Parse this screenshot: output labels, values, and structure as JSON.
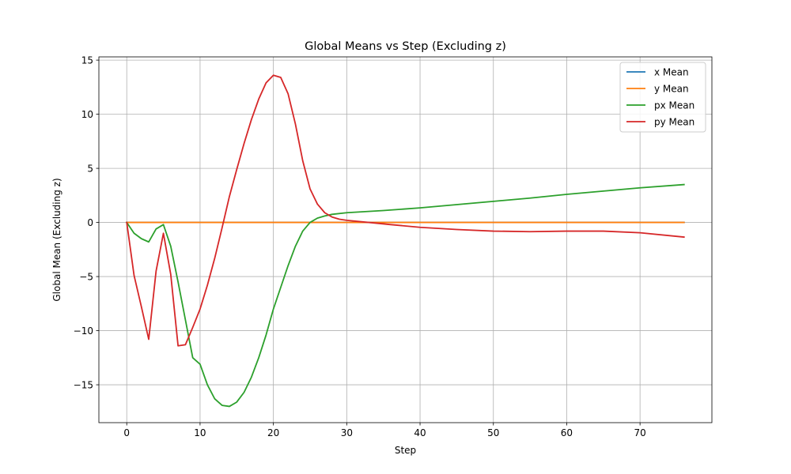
{
  "chart_data": {
    "type": "line",
    "title": "Global Means vs Step (Excluding z)",
    "xlabel": "Step",
    "ylabel": "Global Mean (Excluding z)",
    "xlim": [
      -3.8,
      79.8
    ],
    "ylim": [
      -18.5,
      15.3
    ],
    "xticks": [
      0,
      10,
      20,
      30,
      40,
      50,
      60,
      70
    ],
    "yticks": [
      -15,
      -10,
      -5,
      0,
      5,
      10,
      15
    ],
    "grid": true,
    "legend_position": "top-right",
    "series": [
      {
        "name": "x Mean",
        "color": "#1f77b4",
        "x": [
          0,
          76
        ],
        "y": [
          0,
          0
        ]
      },
      {
        "name": "y Mean",
        "color": "#ff7f0e",
        "x": [
          0,
          76
        ],
        "y": [
          0,
          0
        ]
      },
      {
        "name": "px Mean",
        "color": "#2ca02c",
        "x": [
          0,
          1,
          2,
          3,
          4,
          5,
          6,
          7,
          8,
          9,
          10,
          11,
          12,
          13,
          14,
          15,
          16,
          17,
          18,
          19,
          20,
          21,
          22,
          23,
          24,
          25,
          26,
          27,
          28,
          30,
          35,
          40,
          45,
          50,
          55,
          60,
          65,
          70,
          76
        ],
        "y": [
          0,
          -1.0,
          -1.5,
          -1.8,
          -0.6,
          -0.2,
          -2.2,
          -5.5,
          -9.0,
          -12.5,
          -13.1,
          -15.0,
          -16.3,
          -16.9,
          -17.0,
          -16.6,
          -15.7,
          -14.3,
          -12.5,
          -10.4,
          -8.0,
          -6.0,
          -4.0,
          -2.2,
          -0.8,
          0.0,
          0.4,
          0.6,
          0.75,
          0.9,
          1.1,
          1.35,
          1.65,
          1.95,
          2.25,
          2.6,
          2.9,
          3.2,
          3.5
        ]
      },
      {
        "name": "py Mean",
        "color": "#d62728",
        "x": [
          0,
          1,
          2,
          3,
          4,
          5,
          6,
          7,
          8,
          9,
          10,
          11,
          12,
          13,
          14,
          15,
          16,
          17,
          18,
          19,
          20,
          21,
          22,
          23,
          24,
          25,
          26,
          27,
          28,
          29,
          30,
          33,
          36,
          40,
          45,
          50,
          55,
          60,
          65,
          70,
          76
        ],
        "y": [
          0,
          -4.9,
          -7.8,
          -10.8,
          -4.5,
          -1.0,
          -4.8,
          -11.4,
          -11.3,
          -9.7,
          -8.0,
          -5.8,
          -3.3,
          -0.5,
          2.4,
          4.9,
          7.3,
          9.5,
          11.4,
          12.9,
          13.6,
          13.4,
          11.9,
          9.1,
          5.7,
          3.1,
          1.7,
          0.9,
          0.5,
          0.3,
          0.2,
          0.0,
          -0.2,
          -0.45,
          -0.65,
          -0.8,
          -0.85,
          -0.8,
          -0.8,
          -0.95,
          -1.35
        ]
      }
    ]
  }
}
